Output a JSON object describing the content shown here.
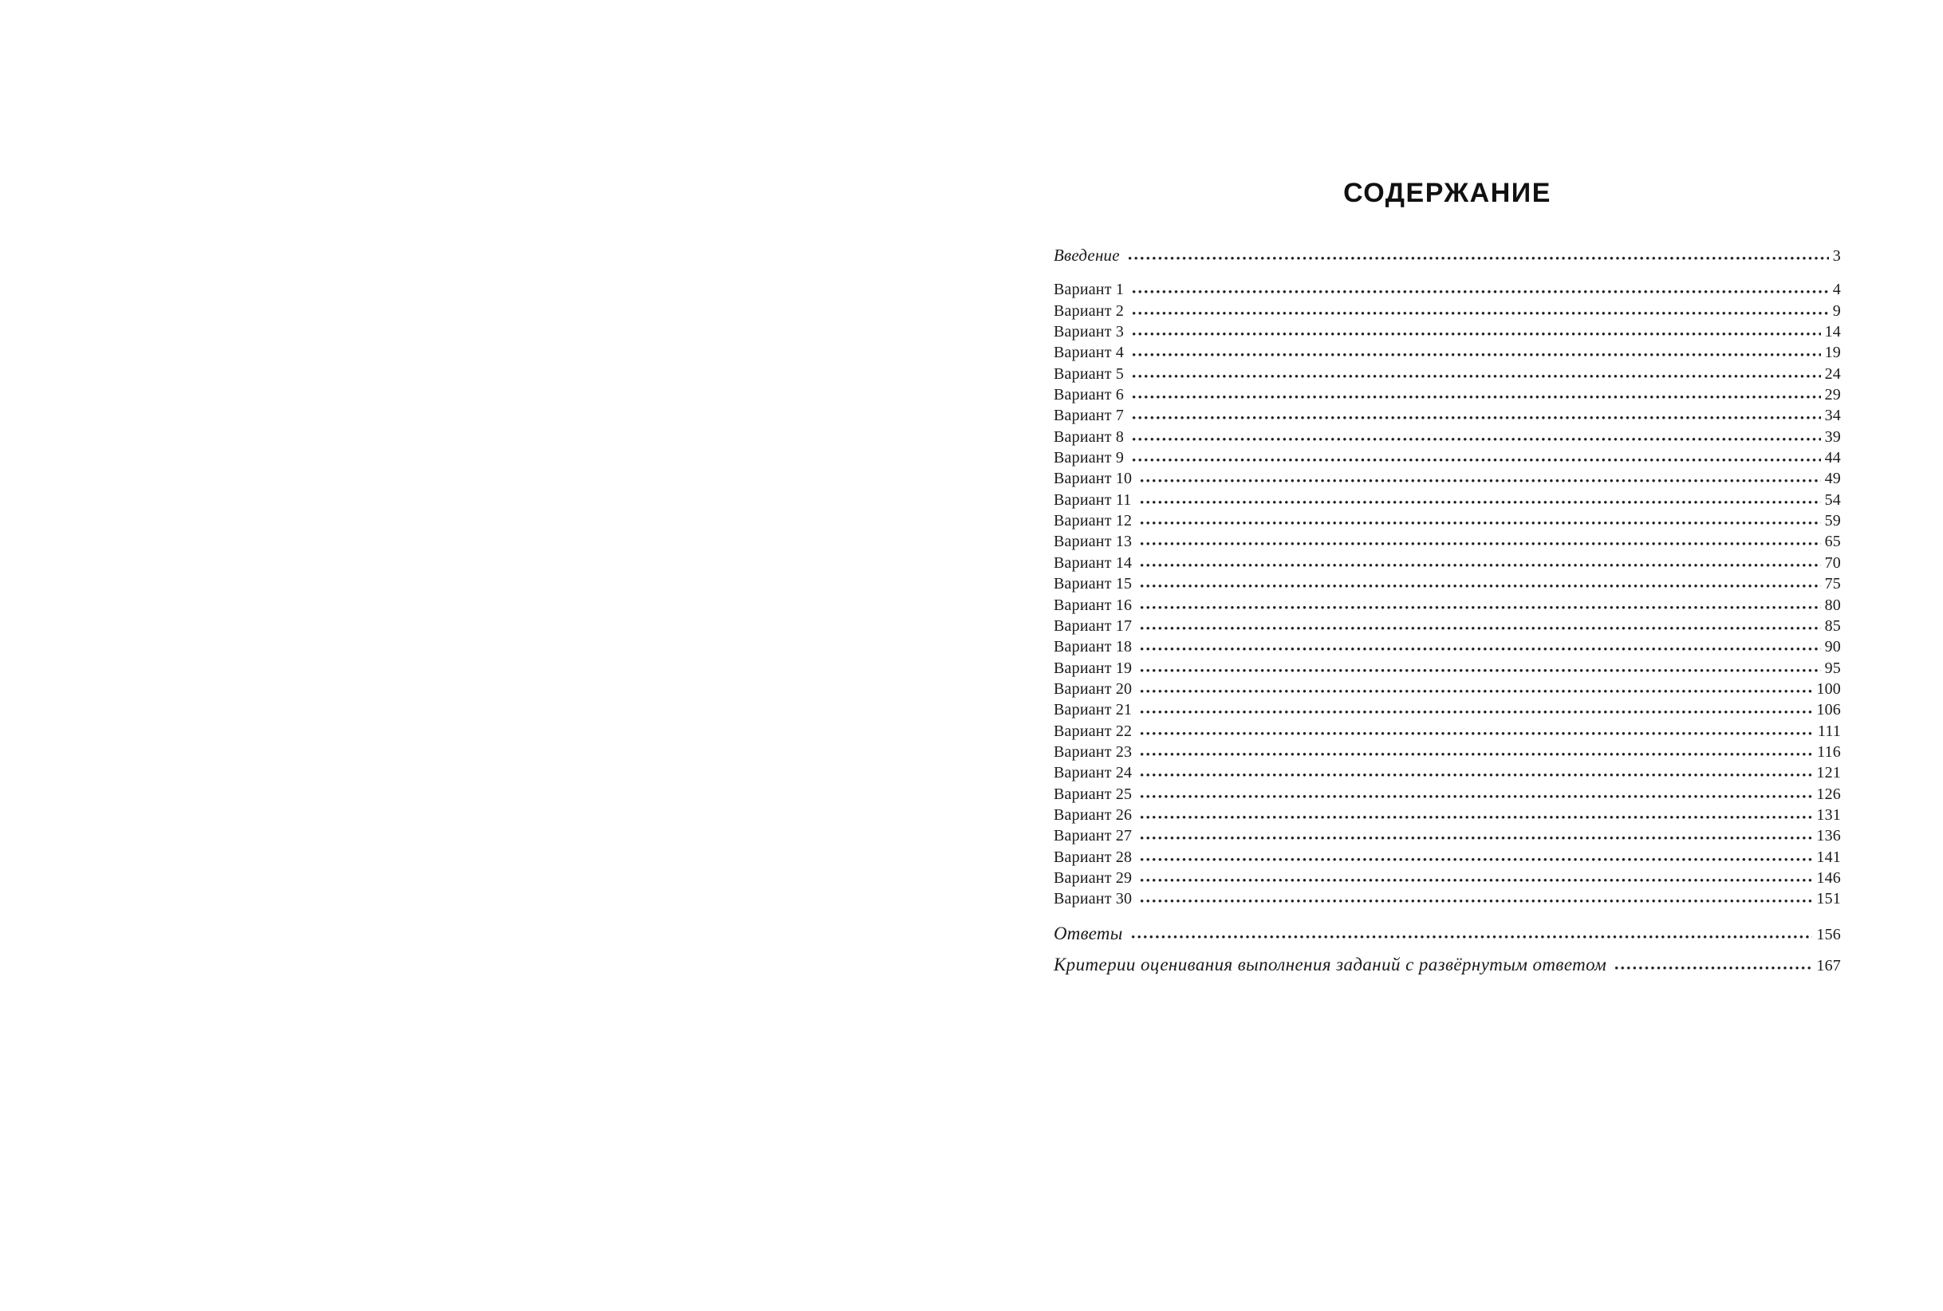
{
  "colors": {
    "background": "#ffffff",
    "text": "#1a1a1a",
    "title": "#111111"
  },
  "title": "СОДЕРЖАНИЕ",
  "toc": {
    "entries": [
      {
        "label": "Введение",
        "page": "3",
        "variant": "intro"
      },
      {
        "label": "Вариант 1",
        "page": "4",
        "variant": "item"
      },
      {
        "label": "Вариант 2",
        "page": "9",
        "variant": "item"
      },
      {
        "label": "Вариант 3",
        "page": "14",
        "variant": "item"
      },
      {
        "label": "Вариант 4",
        "page": "19",
        "variant": "item"
      },
      {
        "label": "Вариант 5",
        "page": "24",
        "variant": "item"
      },
      {
        "label": "Вариант 6",
        "page": "29",
        "variant": "item"
      },
      {
        "label": "Вариант 7",
        "page": "34",
        "variant": "item"
      },
      {
        "label": "Вариант 8",
        "page": "39",
        "variant": "item"
      },
      {
        "label": "Вариант 9",
        "page": "44",
        "variant": "item"
      },
      {
        "label": "Вариант 10",
        "page": "49",
        "variant": "item"
      },
      {
        "label": "Вариант 11",
        "page": "54",
        "variant": "item"
      },
      {
        "label": "Вариант 12",
        "page": "59",
        "variant": "item"
      },
      {
        "label": "Вариант 13",
        "page": "65",
        "variant": "item"
      },
      {
        "label": "Вариант 14",
        "page": "70",
        "variant": "item"
      },
      {
        "label": "Вариант 15",
        "page": "75",
        "variant": "item"
      },
      {
        "label": "Вариант 16",
        "page": "80",
        "variant": "item"
      },
      {
        "label": "Вариант 17",
        "page": "85",
        "variant": "item"
      },
      {
        "label": "Вариант 18",
        "page": "90",
        "variant": "item"
      },
      {
        "label": "Вариант 19",
        "page": "95",
        "variant": "item"
      },
      {
        "label": "Вариант 20",
        "page": "100",
        "variant": "item"
      },
      {
        "label": "Вариант 21",
        "page": "106",
        "variant": "item"
      },
      {
        "label": "Вариант 22",
        "page": "111",
        "variant": "item"
      },
      {
        "label": "Вариант 23",
        "page": "116",
        "variant": "item"
      },
      {
        "label": "Вариант 24",
        "page": "121",
        "variant": "item"
      },
      {
        "label": "Вариант 25",
        "page": "126",
        "variant": "item"
      },
      {
        "label": "Вариант 26",
        "page": "131",
        "variant": "item"
      },
      {
        "label": "Вариант 27",
        "page": "136",
        "variant": "item"
      },
      {
        "label": "Вариант 28",
        "page": "141",
        "variant": "item"
      },
      {
        "label": "Вариант 29",
        "page": "146",
        "variant": "item"
      },
      {
        "label": "Вариант 30",
        "page": "151",
        "variant": "item"
      },
      {
        "label": "Ответы",
        "page": "156",
        "variant": "answers"
      },
      {
        "label": "Критерии оценивания выполнения заданий с развёрнутым ответом",
        "page": "167",
        "variant": "criteria"
      }
    ]
  }
}
